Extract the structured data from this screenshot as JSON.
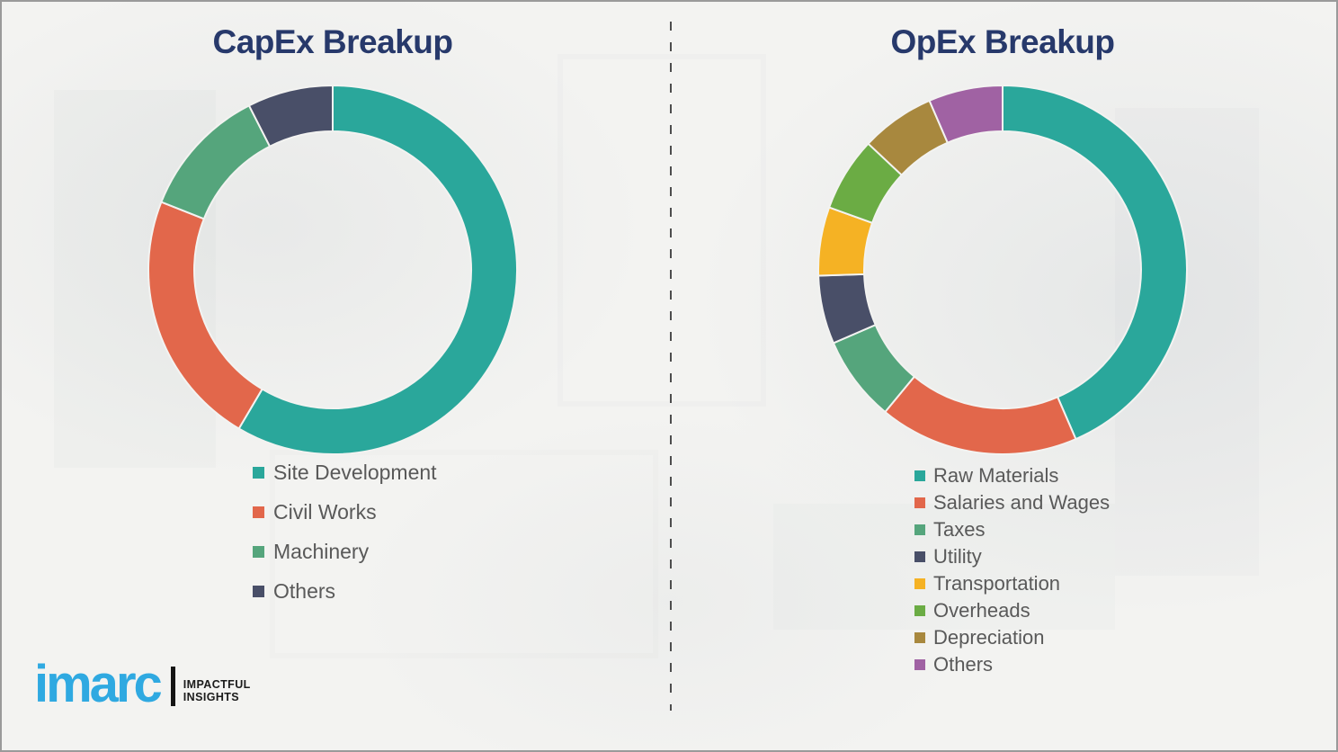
{
  "page": {
    "background_color": "#f3f3f1",
    "frame_border_color": "#9a9a9a",
    "divider_style": "vertical dashed line",
    "divider_color": "#4d4d4d",
    "title_color": "#27396b",
    "legend_text_color": "#595959"
  },
  "chart_data": [
    {
      "type": "pie",
      "subtype": "donut",
      "title": "CapEx Breakup",
      "labels": [
        "Site Development",
        "Civil Works",
        "Machinery",
        "Others"
      ],
      "values": [
        58.5,
        22.5,
        11.5,
        7.5
      ],
      "values_are_estimates_from_arc_angles": true,
      "data_labels_shown": false,
      "colors": [
        "#2aa79b",
        "#e2674b",
        "#55a57c",
        "#494f68"
      ],
      "start_angle_deg": 0,
      "direction": "clockwise",
      "inner_radius_ratio": 0.75,
      "legend_position": "below-left"
    },
    {
      "type": "pie",
      "subtype": "donut",
      "title": "OpEx Breakup",
      "labels": [
        "Raw Materials",
        "Salaries and Wages",
        "Taxes",
        "Utility",
        "Transportation",
        "Overheads",
        "Depreciation",
        "Others"
      ],
      "values": [
        43.5,
        17.5,
        7.5,
        6,
        6,
        6.5,
        6.5,
        6.5
      ],
      "values_are_estimates_from_arc_angles": true,
      "data_labels_shown": false,
      "colors": [
        "#2aa79b",
        "#e2674b",
        "#55a57c",
        "#494f68",
        "#f5b224",
        "#6bac44",
        "#a8883e",
        "#a062a3"
      ],
      "start_angle_deg": 0,
      "direction": "clockwise",
      "inner_radius_ratio": 0.75,
      "legend_position": "below-left"
    }
  ],
  "logo": {
    "brand": "imarc",
    "tagline_line1": "IMPACTFUL",
    "tagline_line2": "INSIGHTS",
    "brand_color": "#2fa9e1",
    "tagline_color": "#1b1b1b"
  }
}
